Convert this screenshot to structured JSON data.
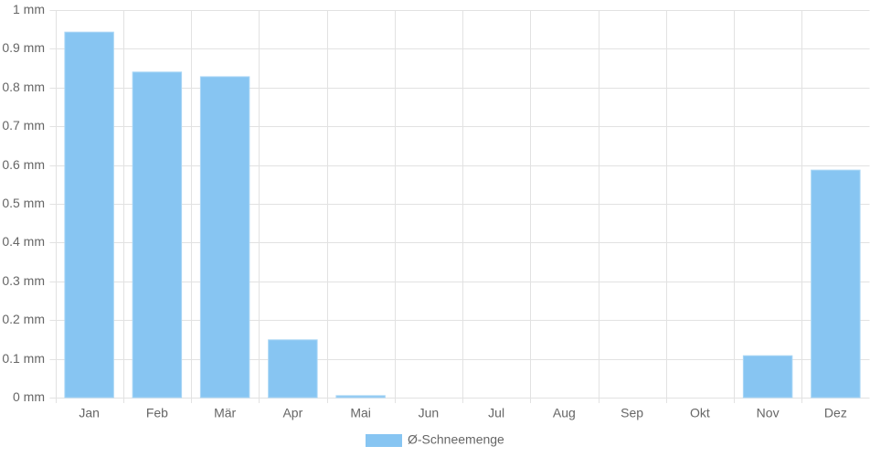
{
  "chart_data": {
    "type": "bar",
    "categories": [
      "Jan",
      "Feb",
      "Mär",
      "Apr",
      "Mai",
      "Jun",
      "Jul",
      "Aug",
      "Sep",
      "Okt",
      "Nov",
      "Dez"
    ],
    "series": [
      {
        "name": "Ø-Schneemenge",
        "color": "#87c5f2",
        "values": [
          0.943,
          0.84,
          0.828,
          0.149,
          0.005,
          0,
          0,
          0,
          0,
          0,
          0.108,
          0.587
        ]
      }
    ],
    "ylim": [
      0,
      1
    ],
    "yticks": [
      {
        "value": 0,
        "label": "0 mm"
      },
      {
        "value": 0.1,
        "label": "0.1 mm"
      },
      {
        "value": 0.2,
        "label": "0.2 mm"
      },
      {
        "value": 0.3,
        "label": "0.3 mm"
      },
      {
        "value": 0.4,
        "label": "0.4 mm"
      },
      {
        "value": 0.5,
        "label": "0.5 mm"
      },
      {
        "value": 0.6,
        "label": "0.6 mm"
      },
      {
        "value": 0.7,
        "label": "0.7 mm"
      },
      {
        "value": 0.8,
        "label": "0.8 mm"
      },
      {
        "value": 0.9,
        "label": "0.9 mm"
      },
      {
        "value": 1,
        "label": "1 mm"
      }
    ],
    "grid": true,
    "legend": "bottom"
  }
}
